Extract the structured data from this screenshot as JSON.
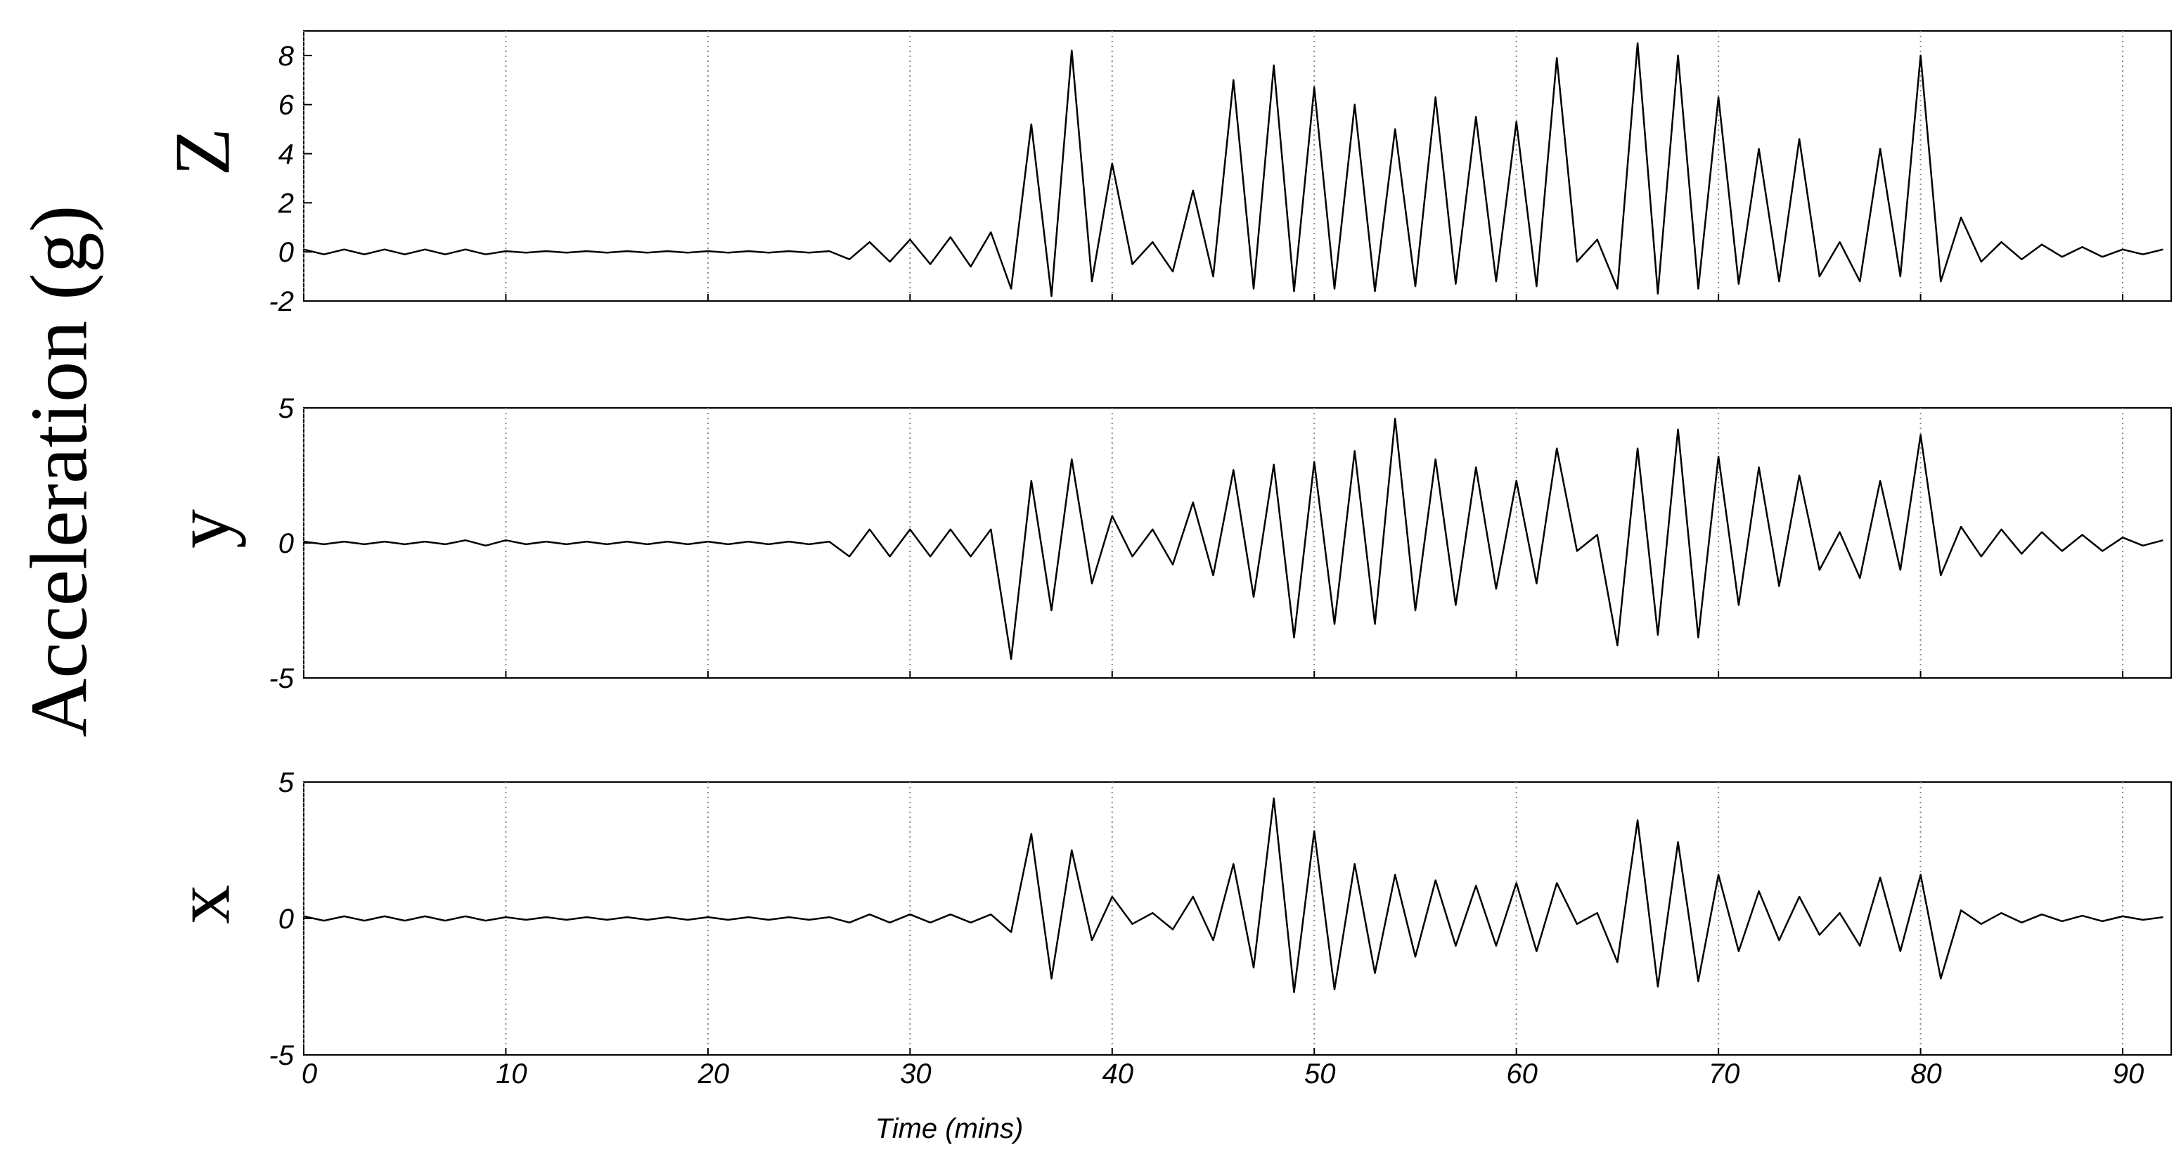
{
  "ylabel": "Acceleration (g)",
  "chart_data": [
    {
      "type": "line",
      "ylabel": "Z",
      "color": "#000000",
      "grid": true,
      "show_xtick_labels": false,
      "xlim": [
        0,
        92.4
      ],
      "xticks": [
        0,
        10,
        20,
        30,
        40,
        50,
        60,
        70,
        80,
        90
      ],
      "ylim": [
        -2,
        9
      ],
      "yticks": [
        -2,
        0,
        2,
        4,
        6,
        8
      ],
      "x": [
        0,
        1,
        2,
        3,
        4,
        5,
        6,
        7,
        8,
        9,
        10,
        11,
        12,
        13,
        14,
        15,
        16,
        17,
        18,
        19,
        20,
        21,
        22,
        23,
        24,
        25,
        26,
        27,
        28,
        29,
        30,
        31,
        32,
        33,
        34,
        35,
        36,
        37,
        38,
        39,
        40,
        41,
        42,
        43,
        44,
        45,
        46,
        47,
        48,
        49,
        50,
        51,
        52,
        53,
        54,
        55,
        56,
        57,
        58,
        59,
        60,
        61,
        62,
        63,
        64,
        65,
        66,
        67,
        68,
        69,
        70,
        71,
        72,
        73,
        74,
        75,
        76,
        77,
        78,
        79,
        80,
        81,
        82,
        83,
        84,
        85,
        86,
        87,
        88,
        89,
        90,
        91,
        92
      ],
      "values": [
        0.1,
        -0.1,
        0.1,
        -0.1,
        0.1,
        -0.1,
        0.1,
        -0.1,
        0.1,
        -0.1,
        0.03,
        -0.03,
        0.03,
        -0.03,
        0.03,
        -0.03,
        0.03,
        -0.03,
        0.03,
        -0.03,
        0.03,
        -0.03,
        0.03,
        -0.03,
        0.03,
        -0.03,
        0.03,
        -0.3,
        0.4,
        -0.4,
        0.5,
        -0.5,
        0.6,
        -0.6,
        0.8,
        -1.5,
        5.2,
        -1.8,
        8.2,
        -1.2,
        3.6,
        -0.5,
        0.4,
        -0.8,
        2.5,
        -1.0,
        7.0,
        -1.5,
        7.6,
        -1.6,
        6.7,
        -1.5,
        6.0,
        -1.6,
        5.0,
        -1.4,
        6.3,
        -1.3,
        5.5,
        -1.2,
        5.3,
        -1.4,
        7.9,
        -0.4,
        0.5,
        -1.5,
        8.5,
        -1.7,
        8.0,
        -1.5,
        6.3,
        -1.3,
        4.2,
        -1.2,
        4.6,
        -1.0,
        0.4,
        -1.2,
        4.2,
        -1.0,
        8.0,
        -1.2,
        1.4,
        -0.4,
        0.4,
        -0.3,
        0.3,
        -0.2,
        0.2,
        -0.2,
        0.1,
        -0.1,
        0.1
      ]
    },
    {
      "type": "line",
      "ylabel": "y",
      "color": "#000000",
      "grid": true,
      "show_xtick_labels": false,
      "xlim": [
        0,
        92.4
      ],
      "xticks": [
        0,
        10,
        20,
        30,
        40,
        50,
        60,
        70,
        80,
        90
      ],
      "ylim": [
        -5,
        5
      ],
      "yticks": [
        -5,
        0,
        5
      ],
      "x": [
        0,
        1,
        2,
        3,
        4,
        5,
        6,
        7,
        8,
        9,
        10,
        11,
        12,
        13,
        14,
        15,
        16,
        17,
        18,
        19,
        20,
        21,
        22,
        23,
        24,
        25,
        26,
        27,
        28,
        29,
        30,
        31,
        32,
        33,
        34,
        35,
        36,
        37,
        38,
        39,
        40,
        41,
        42,
        43,
        44,
        45,
        46,
        47,
        48,
        49,
        50,
        51,
        52,
        53,
        54,
        55,
        56,
        57,
        58,
        59,
        60,
        61,
        62,
        63,
        64,
        65,
        66,
        67,
        68,
        69,
        70,
        71,
        72,
        73,
        74,
        75,
        76,
        77,
        78,
        79,
        80,
        81,
        82,
        83,
        84,
        85,
        86,
        87,
        88,
        89,
        90,
        91,
        92
      ],
      "values": [
        0.05,
        -0.05,
        0.05,
        -0.05,
        0.05,
        -0.05,
        0.05,
        -0.05,
        0.1,
        -0.1,
        0.1,
        -0.05,
        0.05,
        -0.05,
        0.05,
        -0.05,
        0.05,
        -0.05,
        0.05,
        -0.05,
        0.05,
        -0.05,
        0.05,
        -0.05,
        0.05,
        -0.05,
        0.05,
        -0.5,
        0.5,
        -0.5,
        0.5,
        -0.5,
        0.5,
        -0.5,
        0.5,
        -4.3,
        2.3,
        -2.5,
        3.1,
        -1.5,
        1.0,
        -0.5,
        0.5,
        -0.8,
        1.5,
        -1.2,
        2.7,
        -2.0,
        2.9,
        -3.5,
        3.0,
        -3.0,
        3.4,
        -3.0,
        4.6,
        -2.5,
        3.1,
        -2.3,
        2.8,
        -1.7,
        2.3,
        -1.5,
        3.5,
        -0.3,
        0.3,
        -3.8,
        3.5,
        -3.4,
        4.2,
        -3.5,
        3.2,
        -2.3,
        2.8,
        -1.6,
        2.5,
        -1.0,
        0.4,
        -1.3,
        2.3,
        -1.0,
        4.0,
        -1.2,
        0.6,
        -0.5,
        0.5,
        -0.4,
        0.4,
        -0.3,
        0.3,
        -0.3,
        0.2,
        -0.1,
        0.1
      ]
    },
    {
      "type": "line",
      "ylabel": "x",
      "xlabel": "Time (mins)",
      "color": "#000000",
      "grid": true,
      "show_xtick_labels": true,
      "xlim": [
        0,
        92.4
      ],
      "xticks": [
        0,
        10,
        20,
        30,
        40,
        50,
        60,
        70,
        80,
        90
      ],
      "ylim": [
        -5,
        5
      ],
      "yticks": [
        -5,
        0,
        5
      ],
      "x": [
        0,
        1,
        2,
        3,
        4,
        5,
        6,
        7,
        8,
        9,
        10,
        11,
        12,
        13,
        14,
        15,
        16,
        17,
        18,
        19,
        20,
        21,
        22,
        23,
        24,
        25,
        26,
        27,
        28,
        29,
        30,
        31,
        32,
        33,
        34,
        35,
        36,
        37,
        38,
        39,
        40,
        41,
        42,
        43,
        44,
        45,
        46,
        47,
        48,
        49,
        50,
        51,
        52,
        53,
        54,
        55,
        56,
        57,
        58,
        59,
        60,
        61,
        62,
        63,
        64,
        65,
        66,
        67,
        68,
        69,
        70,
        71,
        72,
        73,
        74,
        75,
        76,
        77,
        78,
        79,
        80,
        81,
        82,
        83,
        84,
        85,
        86,
        87,
        88,
        89,
        90,
        91,
        92
      ],
      "values": [
        0.08,
        -0.08,
        0.08,
        -0.08,
        0.08,
        -0.08,
        0.08,
        -0.08,
        0.08,
        -0.08,
        0.05,
        -0.05,
        0.05,
        -0.05,
        0.05,
        -0.05,
        0.05,
        -0.05,
        0.05,
        -0.05,
        0.05,
        -0.05,
        0.05,
        -0.05,
        0.05,
        -0.05,
        0.05,
        -0.15,
        0.15,
        -0.15,
        0.15,
        -0.15,
        0.15,
        -0.15,
        0.15,
        -0.5,
        3.1,
        -2.2,
        2.5,
        -0.8,
        0.8,
        -0.2,
        0.2,
        -0.4,
        0.8,
        -0.8,
        2.0,
        -1.8,
        4.4,
        -2.7,
        3.2,
        -2.6,
        2.0,
        -2.0,
        1.6,
        -1.4,
        1.4,
        -1.0,
        1.2,
        -1.0,
        1.3,
        -1.2,
        1.3,
        -0.2,
        0.2,
        -1.6,
        3.6,
        -2.5,
        2.8,
        -2.3,
        1.6,
        -1.2,
        1.0,
        -0.8,
        0.8,
        -0.6,
        0.2,
        -1.0,
        1.5,
        -1.2,
        1.6,
        -2.2,
        0.3,
        -0.2,
        0.2,
        -0.15,
        0.15,
        -0.1,
        0.1,
        -0.1,
        0.08,
        -0.05,
        0.05
      ]
    }
  ]
}
